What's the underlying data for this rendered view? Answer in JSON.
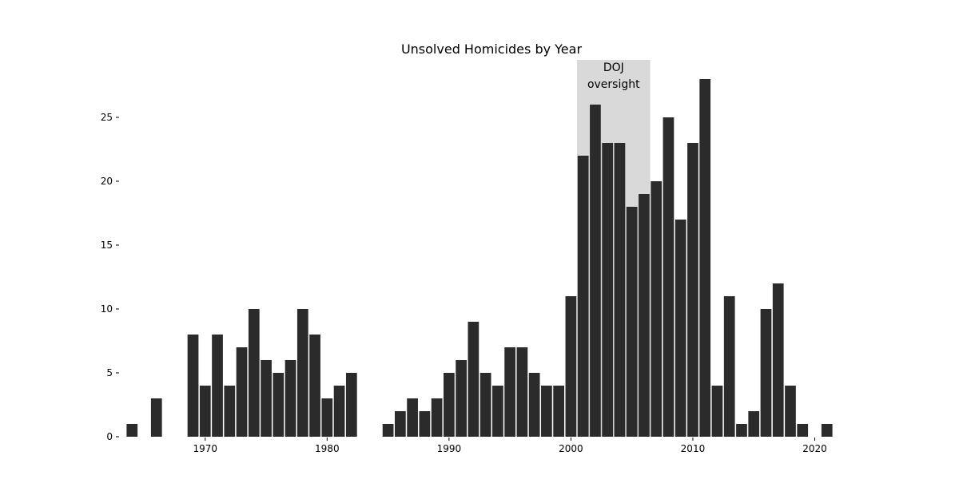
{
  "chart_data": {
    "type": "bar",
    "title": "Unsolved Homicides by Year",
    "xlabel": "",
    "ylabel": "",
    "x": [
      1964,
      1965,
      1966,
      1967,
      1968,
      1969,
      1970,
      1971,
      1972,
      1973,
      1974,
      1975,
      1976,
      1977,
      1978,
      1979,
      1980,
      1981,
      1982,
      1983,
      1984,
      1985,
      1986,
      1987,
      1988,
      1989,
      1990,
      1991,
      1992,
      1993,
      1994,
      1995,
      1996,
      1997,
      1998,
      1999,
      2000,
      2001,
      2002,
      2003,
      2004,
      2005,
      2006,
      2007,
      2008,
      2009,
      2010,
      2011,
      2012,
      2013,
      2014,
      2015,
      2016,
      2017,
      2018,
      2019,
      2020,
      2021
    ],
    "values": [
      1,
      0,
      3,
      0,
      0,
      8,
      4,
      8,
      4,
      7,
      10,
      6,
      5,
      6,
      10,
      8,
      3,
      4,
      5,
      0,
      0,
      1,
      2,
      3,
      2,
      3,
      5,
      6,
      9,
      5,
      4,
      7,
      7,
      5,
      4,
      4,
      11,
      22,
      26,
      23,
      23,
      18,
      19,
      20,
      25,
      17,
      23,
      28,
      4,
      11,
      1,
      2,
      10,
      12,
      4,
      1,
      0,
      1
    ],
    "xlim": [
      1963,
      2022
    ],
    "ylim": [
      0,
      29.5
    ],
    "xticks": [
      1970,
      1980,
      1990,
      2000,
      2010,
      2020
    ],
    "yticks": [
      0,
      5,
      10,
      15,
      20,
      25
    ],
    "grid": false,
    "bar_color": "#2b2b2b",
    "shaded_region": {
      "x_start": 2000.5,
      "x_end": 2006.5,
      "color": "#d9d9d9",
      "label_lines": [
        "DOJ",
        "oversight"
      ]
    }
  }
}
